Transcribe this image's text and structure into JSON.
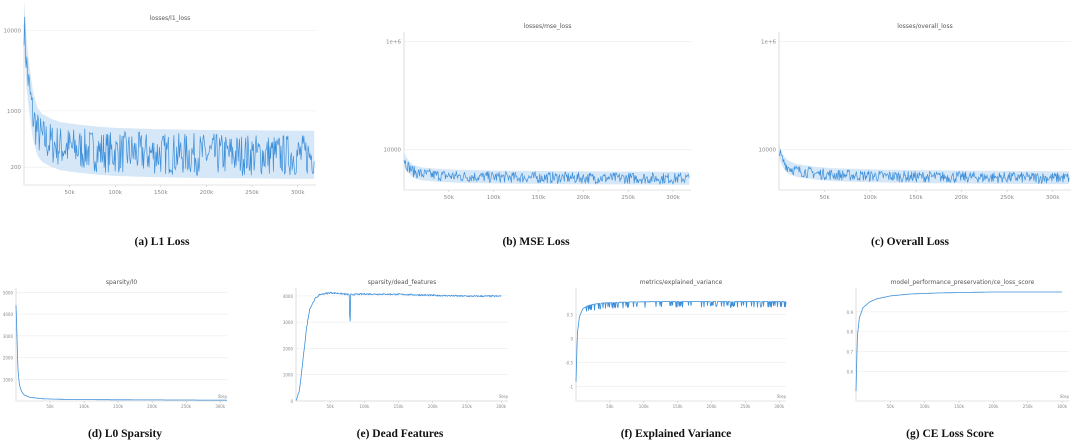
{
  "captions": {
    "a": "(a) L1 Loss",
    "b": "(b) MSE Loss",
    "c": "(c) Overall Loss",
    "d": "(d) L0 Sparsity",
    "e": "(e) Dead Features",
    "f": "(f) Explained Variance",
    "g": "(g) CE Loss Score"
  },
  "colors": {
    "line": "#3d8fd9",
    "band": "#cfe3f6"
  },
  "chart_data": [
    {
      "id": "a",
      "type": "line",
      "title": "losses/l1_loss",
      "yscale": "log",
      "xlim": [
        0,
        320000
      ],
      "ylim": [
        120,
        12000
      ],
      "x_ticks": [
        {
          "v": 50000,
          "label": "50k"
        },
        {
          "v": 100000,
          "label": "100k"
        },
        {
          "v": 150000,
          "label": "150k"
        },
        {
          "v": 200000,
          "label": "200k"
        },
        {
          "v": 250000,
          "label": "250k"
        },
        {
          "v": 300000,
          "label": "300k"
        }
      ],
      "y_ticks": [
        {
          "v": 10000,
          "label": "10000"
        },
        {
          "v": 1000,
          "label": "1000"
        },
        {
          "v": 200,
          "label": "200"
        }
      ],
      "series": [
        {
          "x": [
            0,
            3000,
            6000,
            10000,
            15000,
            20000,
            30000,
            40000,
            60000,
            80000,
            100000,
            150000,
            200000,
            250000,
            300000,
            318000
          ],
          "values": [
            10000,
            3000,
            1500,
            700,
            450,
            380,
            330,
            300,
            280,
            265,
            255,
            245,
            240,
            238,
            235,
            235
          ]
        }
      ]
    },
    {
      "id": "b",
      "type": "line",
      "title": "losses/mse_loss",
      "yscale": "log",
      "xlim": [
        0,
        320000
      ],
      "ylim": [
        1800,
        1500000
      ],
      "x_ticks": [
        {
          "v": 50000,
          "label": "50k"
        },
        {
          "v": 100000,
          "label": "100k"
        },
        {
          "v": 150000,
          "label": "150k"
        },
        {
          "v": 200000,
          "label": "200k"
        },
        {
          "v": 250000,
          "label": "250k"
        },
        {
          "v": 300000,
          "label": "300k"
        }
      ],
      "y_ticks": [
        {
          "v": 1000000,
          "label": "1e+6"
        },
        {
          "v": 10000,
          "label": "10000"
        }
      ],
      "series": [
        {
          "x": [
            0,
            2000,
            5000,
            10000,
            20000,
            40000,
            60000,
            100000,
            150000,
            200000,
            250000,
            300000,
            318000
          ],
          "values": [
            6500,
            5200,
            4500,
            3700,
            3300,
            3100,
            3000,
            2900,
            2850,
            2800,
            2780,
            2750,
            2750
          ]
        }
      ]
    },
    {
      "id": "c",
      "type": "line",
      "title": "losses/overall_loss",
      "yscale": "log",
      "xlim": [
        0,
        320000
      ],
      "ylim": [
        1800,
        1500000
      ],
      "x_ticks": [
        {
          "v": 50000,
          "label": "50k"
        },
        {
          "v": 100000,
          "label": "100k"
        },
        {
          "v": 150000,
          "label": "150k"
        },
        {
          "v": 200000,
          "label": "200k"
        },
        {
          "v": 250000,
          "label": "250k"
        },
        {
          "v": 300000,
          "label": "300k"
        }
      ],
      "y_ticks": [
        {
          "v": 1000000,
          "label": "1e+6"
        },
        {
          "v": 10000,
          "label": "10000"
        }
      ],
      "series": [
        {
          "x": [
            0,
            2000,
            5000,
            10000,
            20000,
            40000,
            60000,
            100000,
            150000,
            200000,
            250000,
            300000,
            318000
          ],
          "values": [
            9000,
            7000,
            5500,
            4400,
            3800,
            3400,
            3200,
            3050,
            2950,
            2900,
            2850,
            2820,
            2820
          ]
        }
      ]
    },
    {
      "id": "d",
      "type": "line",
      "title": "sparsity/l0",
      "yscale": "linear",
      "xlim": [
        0,
        310000
      ],
      "ylim": [
        0,
        5200
      ],
      "x_ticks": [
        {
          "v": 50000,
          "label": "50k"
        },
        {
          "v": 100000,
          "label": "100k"
        },
        {
          "v": 150000,
          "label": "150k"
        },
        {
          "v": 200000,
          "label": "200k"
        },
        {
          "v": 250000,
          "label": "250k"
        },
        {
          "v": 300000,
          "label": "300k"
        }
      ],
      "y_ticks": [
        {
          "v": 5000,
          "label": "5000"
        },
        {
          "v": 4000,
          "label": "4000"
        },
        {
          "v": 3000,
          "label": "3000"
        },
        {
          "v": 2000,
          "label": "2000"
        },
        {
          "v": 1000,
          "label": "1000"
        }
      ],
      "x_end_label": "Step",
      "series": [
        {
          "x": [
            0,
            1000,
            2000,
            3000,
            5000,
            8000,
            12000,
            20000,
            40000,
            80000,
            150000,
            250000,
            310000
          ],
          "values": [
            4400,
            3500,
            2300,
            1400,
            750,
            450,
            280,
            170,
            100,
            70,
            55,
            45,
            40
          ]
        }
      ]
    },
    {
      "id": "e",
      "type": "line",
      "title": "sparsity/dead_features",
      "yscale": "linear",
      "xlim": [
        0,
        310000
      ],
      "ylim": [
        0,
        4300
      ],
      "x_ticks": [
        {
          "v": 50000,
          "label": "50k"
        },
        {
          "v": 100000,
          "label": "100k"
        },
        {
          "v": 150000,
          "label": "150k"
        },
        {
          "v": 200000,
          "label": "200k"
        },
        {
          "v": 250000,
          "label": "250k"
        },
        {
          "v": 300000,
          "label": "300k"
        }
      ],
      "y_ticks": [
        {
          "v": 4000,
          "label": "4000"
        },
        {
          "v": 3000,
          "label": "3000"
        },
        {
          "v": 2000,
          "label": "2000"
        },
        {
          "v": 1000,
          "label": "1000"
        },
        {
          "v": 0,
          "label": "0"
        }
      ],
      "x_end_label": "Step",
      "series": [
        {
          "x": [
            0,
            5000,
            10000,
            15000,
            20000,
            28000,
            35000,
            50000,
            60000,
            78000,
            79000,
            80000,
            100000,
            150000,
            200000,
            250000,
            300000
          ],
          "values": [
            0,
            400,
            1500,
            2700,
            3500,
            3900,
            4050,
            4120,
            4100,
            4050,
            2600,
            4050,
            4070,
            4060,
            4020,
            3990,
            3990
          ]
        }
      ]
    },
    {
      "id": "f",
      "type": "line",
      "title": "metrics/explained_variance",
      "yscale": "linear",
      "xlim": [
        0,
        310000
      ],
      "ylim": [
        -1.3,
        1.05
      ],
      "x_ticks": [
        {
          "v": 50000,
          "label": "50k"
        },
        {
          "v": 100000,
          "label": "100k"
        },
        {
          "v": 150000,
          "label": "150k"
        },
        {
          "v": 200000,
          "label": "200k"
        },
        {
          "v": 250000,
          "label": "250k"
        },
        {
          "v": 300000,
          "label": "300k"
        }
      ],
      "y_ticks": [
        {
          "v": 0.5,
          "label": "0.5"
        },
        {
          "v": 0,
          "label": "0"
        },
        {
          "v": -0.5,
          "label": "-0.5"
        },
        {
          "v": -1,
          "label": "-1"
        }
      ],
      "x_end_label": "Step",
      "series": [
        {
          "x": [
            0,
            2000,
            5000,
            10000,
            20000,
            40000,
            80000,
            150000,
            200000,
            250000,
            310000
          ],
          "values": [
            -0.9,
            0.1,
            0.45,
            0.62,
            0.7,
            0.74,
            0.76,
            0.77,
            0.77,
            0.77,
            0.77
          ]
        }
      ]
    },
    {
      "id": "g",
      "type": "line",
      "title": "model_performance_preservation/ce_loss_score",
      "yscale": "linear",
      "xlim": [
        0,
        310000
      ],
      "ylim": [
        0.45,
        1.02
      ],
      "x_ticks": [
        {
          "v": 50000,
          "label": "50k"
        },
        {
          "v": 100000,
          "label": "100k"
        },
        {
          "v": 150000,
          "label": "150k"
        },
        {
          "v": 200000,
          "label": "200k"
        },
        {
          "v": 250000,
          "label": "250k"
        },
        {
          "v": 300000,
          "label": "300k"
        }
      ],
      "y_ticks": [
        {
          "v": 0.9,
          "label": "0.9"
        },
        {
          "v": 0.8,
          "label": "0.8"
        },
        {
          "v": 0.7,
          "label": "0.7"
        },
        {
          "v": 0.6,
          "label": "0.6"
        }
      ],
      "x_end_label": "Step",
      "series": [
        {
          "x": [
            0,
            2000,
            5000,
            10000,
            20000,
            30000,
            50000,
            80000,
            120000,
            200000,
            300000
          ],
          "values": [
            0.5,
            0.78,
            0.87,
            0.92,
            0.95,
            0.965,
            0.98,
            0.99,
            0.995,
            1.0,
            1.0
          ]
        }
      ]
    }
  ]
}
